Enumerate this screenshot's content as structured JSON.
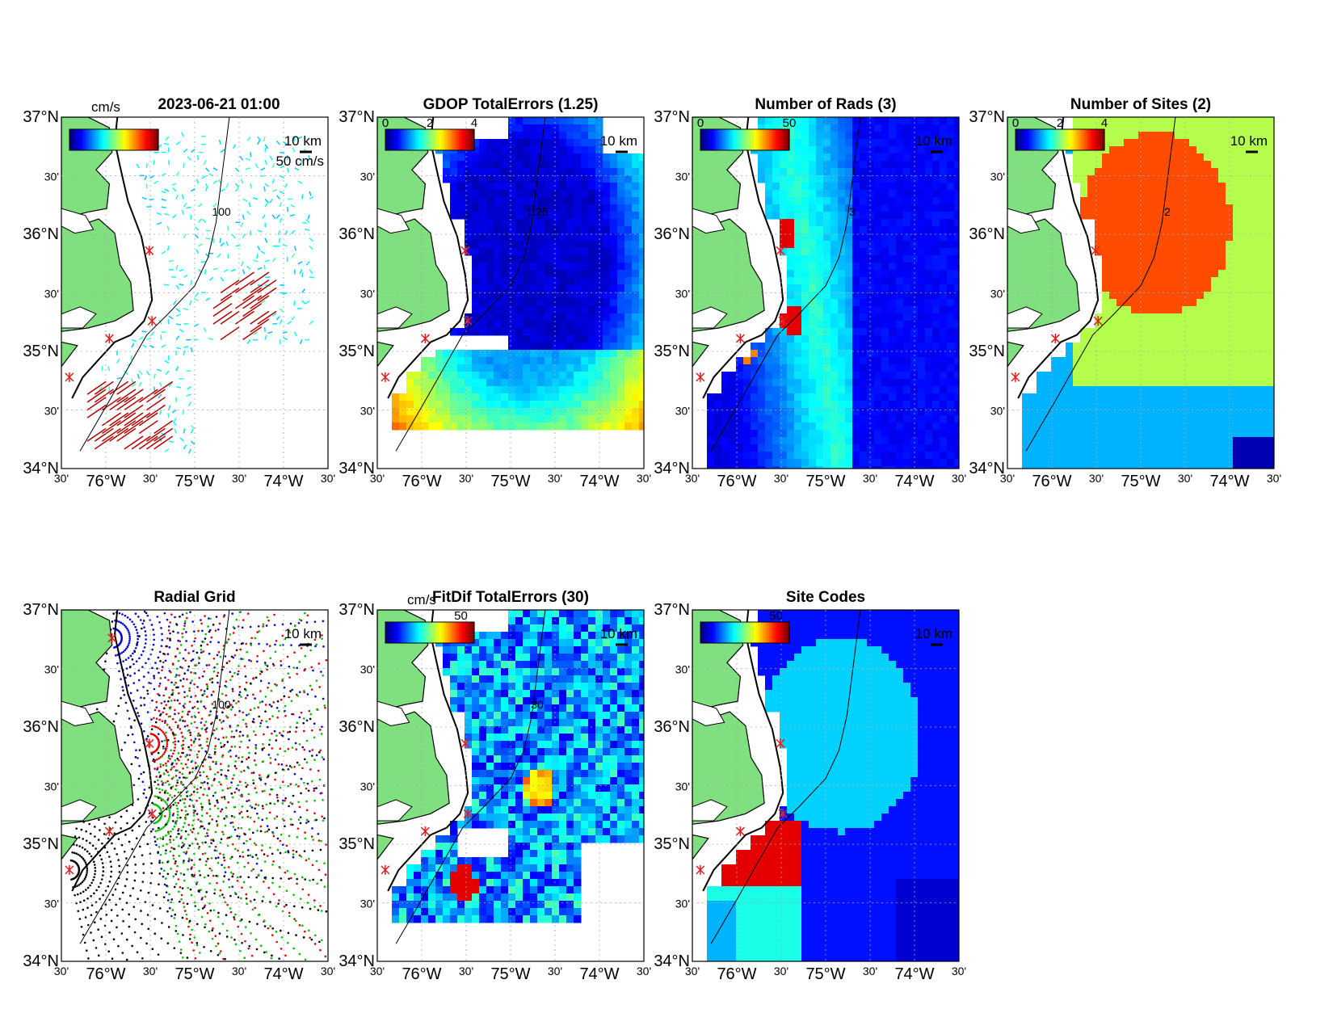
{
  "figure": {
    "panels": [
      {
        "id": "currents",
        "title": "2023-06-21 01:00",
        "colorbar": {
          "unit": "cm/s",
          "ticks": []
        },
        "scale_label": "50 cm/s",
        "km_label": "10 km",
        "contour_label": "100",
        "style": "vectors"
      },
      {
        "id": "gdop",
        "title": "GDOP TotalErrors (1.25)",
        "colorbar": {
          "unit": "",
          "ticks": [
            "0",
            "2",
            "4"
          ]
        },
        "km_label": "10 km",
        "contour_label": "1.25",
        "style": "field"
      },
      {
        "id": "nrads",
        "title": "Number of Rads (3)",
        "colorbar": {
          "unit": "",
          "ticks": [
            "0",
            "50"
          ]
        },
        "km_label": "10 km",
        "contour_label": "3",
        "style": "field"
      },
      {
        "id": "nsites",
        "title": "Number of Sites (2)",
        "colorbar": {
          "unit": "",
          "ticks": [
            "0",
            "2",
            "4"
          ]
        },
        "km_label": "10 km",
        "contour_label": "2",
        "style": "field"
      },
      {
        "id": "radgrid",
        "title": "Radial Grid",
        "colorbar": null,
        "km_label": "10 km",
        "contour_label": "100",
        "style": "radial"
      },
      {
        "id": "fitdif",
        "title": "FitDif TotalErrors (30)",
        "colorbar": {
          "unit": "cm/s",
          "ticks": [
            "50"
          ]
        },
        "km_label": "10 km",
        "contour_label": "30",
        "style": "field"
      },
      {
        "id": "sitecodes",
        "title": "Site Codes",
        "colorbar": {
          "unit": "",
          "ticks": [
            "50"
          ]
        },
        "km_label": "10 km",
        "contour_label": "",
        "style": "field"
      }
    ],
    "lat_ticks": [
      "37°N",
      "30'",
      "36°N",
      "30'",
      "35°N",
      "30'",
      "34°N"
    ],
    "lon_ticks": [
      "30'",
      "76°W",
      "30'",
      "75°W",
      "30'",
      "74°W",
      "30'"
    ],
    "colors": {
      "land": "#80e080",
      "coast": "#000000",
      "site_marker": "#e02020",
      "radial_site_colors": [
        "#0000e0",
        "#e00000",
        "#00c000",
        "#000000"
      ]
    }
  }
}
